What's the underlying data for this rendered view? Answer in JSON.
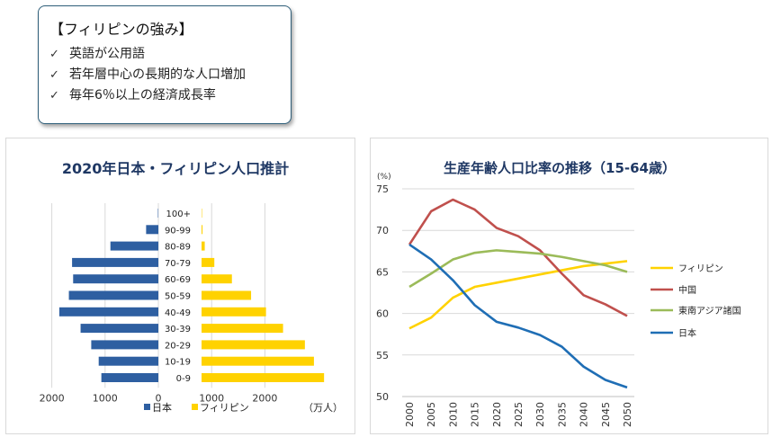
{
  "callout": {
    "heading": "【フィリピンの強み】",
    "items": [
      "英語が公用語",
      "若年層中心の長期的な人口増加",
      "毎年6％以上の経済成長率"
    ]
  },
  "colors": {
    "japan": "#2e5fa1",
    "philippines": "#ffd200",
    "china": "#c0504d",
    "sea": "#9bbb59",
    "japan_line": "#1f6eb5",
    "title": "#1f3864"
  },
  "chart_data": [
    {
      "type": "bar",
      "orientation": "horizontal-pyramid",
      "title": "2020年日本・フィリピン人口推計",
      "unit_label": "（万人）",
      "categories": [
        "100+",
        "90-99",
        "80-89",
        "70-79",
        "60-69",
        "50-59",
        "40-49",
        "30-39",
        "20-29",
        "10-19",
        "0-9"
      ],
      "series": [
        {
          "name": "日本",
          "values": [
            8,
            230,
            900,
            1620,
            1600,
            1680,
            1860,
            1460,
            1260,
            1120,
            1070
          ]
        },
        {
          "name": "フィリピン",
          "values": [
            8,
            18,
            60,
            240,
            570,
            930,
            1210,
            1530,
            1940,
            2110,
            2300
          ]
        }
      ],
      "xlim": [
        -2000,
        2000
      ],
      "ticks": [
        "2000",
        "1000",
        "0",
        "1000",
        "2000"
      ],
      "grid": true,
      "legend": "bottom"
    },
    {
      "type": "line",
      "title": "生産年齢人口比率の推移（15-64歳）",
      "ylabel": "(%)",
      "x": [
        "2000",
        "2005",
        "2010",
        "2015",
        "2020",
        "2025",
        "2030",
        "2035",
        "2040",
        "2045",
        "2050"
      ],
      "ylim": [
        50,
        75
      ],
      "yticks": [
        "75",
        "70",
        "65",
        "60",
        "55",
        "50"
      ],
      "series": [
        {
          "name": "フィリピン",
          "values": [
            58.2,
            59.5,
            61.9,
            63.2,
            63.7,
            64.2,
            64.7,
            65.2,
            65.7,
            66.0,
            66.3
          ]
        },
        {
          "name": "中国",
          "values": [
            68.3,
            72.3,
            73.7,
            72.5,
            70.3,
            69.3,
            67.6,
            64.8,
            62.2,
            61.1,
            59.7
          ]
        },
        {
          "name": "東南アジア諸国",
          "values": [
            63.2,
            64.8,
            66.5,
            67.3,
            67.6,
            67.4,
            67.2,
            66.8,
            66.3,
            65.8,
            65.0
          ]
        },
        {
          "name": "日本",
          "values": [
            68.3,
            66.5,
            64.0,
            61.0,
            59.0,
            58.3,
            57.4,
            56.0,
            53.6,
            52.0,
            51.1
          ]
        }
      ],
      "grid": true,
      "legend": "right"
    }
  ]
}
